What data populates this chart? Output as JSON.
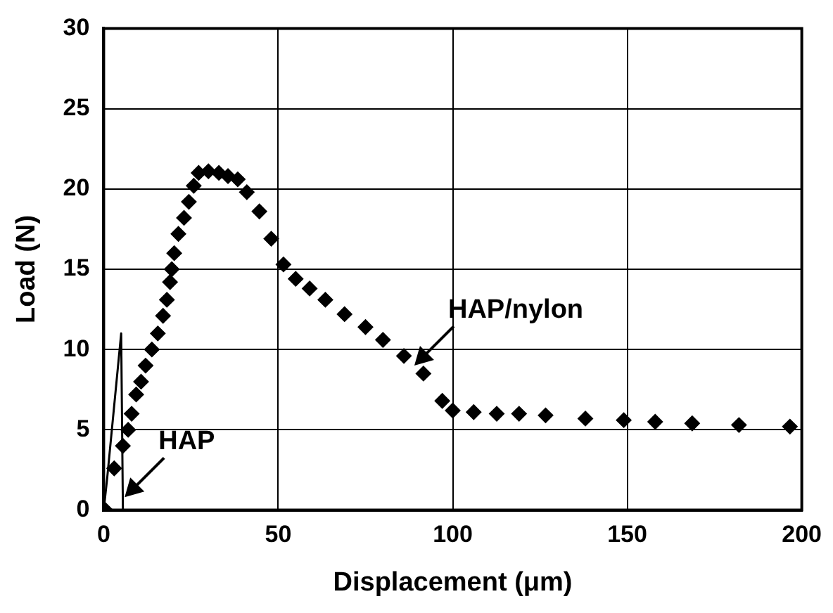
{
  "chart_data": {
    "type": "scatter",
    "xlabel": "Displacement (μm)",
    "ylabel": "Load (N)",
    "xlim": [
      0,
      200
    ],
    "xticks": [
      0,
      50,
      100,
      150,
      200
    ],
    "ylim": [
      0,
      30
    ],
    "yticks": [
      0,
      5,
      10,
      15,
      20,
      25,
      30
    ],
    "grid": true,
    "marker": "diamond",
    "series": [
      {
        "type": "scatter",
        "color": "#000000",
        "x": [
          0.5,
          3,
          5.5,
          7,
          8,
          9.3,
          10.7,
          12,
          13.8,
          15.5,
          17,
          18.1,
          19,
          19.5,
          20.2,
          21.4,
          23,
          24.4,
          25.8,
          27.2,
          30,
          33,
          35.6,
          38.4,
          41,
          44.6,
          48,
          51.5,
          55,
          59,
          63.5,
          69,
          75,
          80,
          86,
          91.6,
          97,
          100,
          106,
          112.6,
          119,
          126.6,
          138,
          149,
          158,
          168.6,
          182,
          196.6
        ],
        "values": [
          0,
          2.6,
          4,
          5,
          6,
          7.2,
          8,
          9,
          10,
          11,
          12.1,
          13.1,
          14.2,
          15,
          16,
          17.2,
          18.2,
          19.2,
          20.2,
          21,
          21.1,
          21,
          20.8,
          20.6,
          19.8,
          18.6,
          16.9,
          15.3,
          14.4,
          13.8,
          13.1,
          12.2,
          11.4,
          10.6,
          9.6,
          8.5,
          6.8,
          6.2,
          6.1,
          6,
          6,
          5.9,
          5.7,
          5.6,
          5.5,
          5.4,
          5.3,
          5.2
        ]
      },
      {
        "type": "line",
        "color": "#000000",
        "marker": "none",
        "x": [
          0,
          1,
          5,
          5.5
        ],
        "values": [
          0,
          2,
          11,
          0
        ]
      }
    ],
    "annotations": [
      {
        "text": "HAP/nylon",
        "x": 89,
        "y": 9
      },
      {
        "text": "HAP",
        "x": 6,
        "y": 0.8
      }
    ]
  }
}
